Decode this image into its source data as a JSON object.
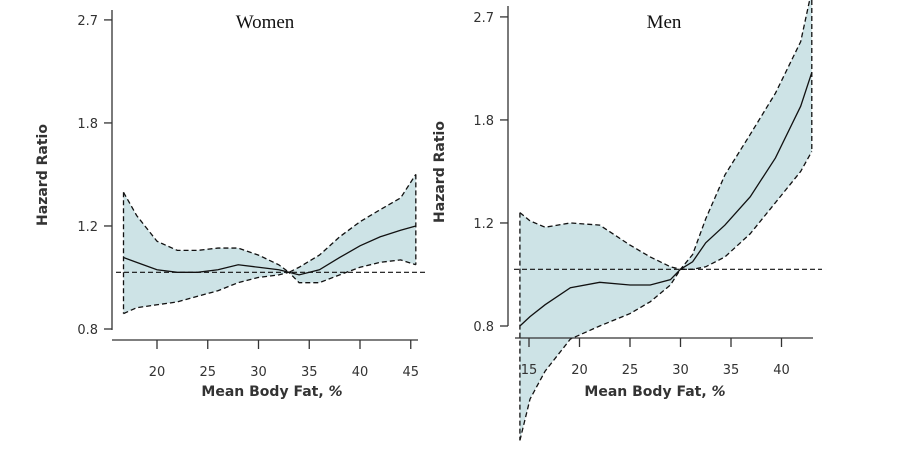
{
  "chart_data": [
    {
      "type": "line",
      "title": "Women",
      "xlabel": "Mean Body Fat,",
      "xlabel_unit": "%",
      "ylabel": "Hazard Ratio",
      "y_scale": "log",
      "xticks": [
        20,
        25,
        30,
        35,
        40,
        45
      ],
      "yticks": [
        0.8,
        1.2,
        1.8,
        2.7
      ],
      "ytick_labels": [
        "0.8",
        "1.2",
        "1.8",
        "2.7"
      ],
      "reference_line": 1.0,
      "grid": false,
      "fill_color": "#cde3e6",
      "x": [
        16.7,
        18,
        20,
        22,
        24,
        26,
        28,
        30,
        32,
        33,
        34,
        36,
        38,
        40,
        42,
        44,
        45.5
      ],
      "hazard_ratio": [
        1.06,
        1.04,
        1.01,
        1.0,
        1.0,
        1.01,
        1.03,
        1.02,
        1.01,
        1.0,
        0.99,
        1.01,
        1.06,
        1.11,
        1.15,
        1.18,
        1.2
      ],
      "upper_ci": [
        1.37,
        1.25,
        1.13,
        1.09,
        1.09,
        1.1,
        1.1,
        1.07,
        1.03,
        1.0,
        1.02,
        1.07,
        1.15,
        1.22,
        1.28,
        1.34,
        1.47
      ],
      "lower_ci": [
        0.85,
        0.87,
        0.88,
        0.89,
        0.91,
        0.93,
        0.96,
        0.98,
        0.99,
        1.0,
        0.96,
        0.96,
        0.99,
        1.02,
        1.04,
        1.05,
        1.03
      ]
    },
    {
      "type": "line",
      "title": "Men",
      "xlabel": "Mean Body Fat,",
      "xlabel_unit": "%",
      "ylabel": "Hazard Ratio",
      "y_scale": "log",
      "xticks": [
        15,
        20,
        25,
        30,
        35,
        40
      ],
      "yticks": [
        0.8,
        1.2,
        1.8,
        2.7
      ],
      "ytick_labels": [
        "0.8",
        "1.2",
        "1.8",
        "2.7"
      ],
      "reference_line": 1.0,
      "grid": false,
      "fill_color": "#cde3e6",
      "x": [
        14.1,
        15.1,
        16.6,
        19.1,
        22.0,
        25.0,
        27.0,
        29.0,
        30.0,
        31.2,
        32.5,
        34.4,
        36.9,
        39.4,
        41.9,
        43.0
      ],
      "hazard_ratio": [
        0.8,
        0.83,
        0.87,
        0.93,
        0.95,
        0.94,
        0.94,
        0.96,
        1.0,
        1.03,
        1.11,
        1.19,
        1.33,
        1.55,
        1.9,
        2.17
      ],
      "upper_ci": [
        1.25,
        1.21,
        1.18,
        1.2,
        1.19,
        1.1,
        1.05,
        1.01,
        1.0,
        1.06,
        1.22,
        1.45,
        1.7,
        2.0,
        2.45,
        3.0
      ],
      "lower_ci": [
        0.51,
        0.6,
        0.67,
        0.76,
        0.8,
        0.84,
        0.88,
        0.94,
        1.0,
        1.0,
        1.01,
        1.05,
        1.15,
        1.3,
        1.47,
        1.59
      ]
    }
  ]
}
